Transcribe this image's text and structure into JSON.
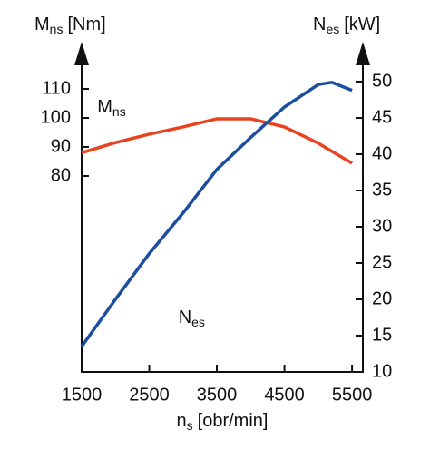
{
  "chart_data": {
    "type": "line",
    "y_label": {
      "symbol": "M",
      "subscript": "ns",
      "unit": "[Nm]"
    },
    "y2_label": {
      "symbol": "N",
      "subscript": "es",
      "unit": "[kW]"
    },
    "x_label": {
      "symbol": "n",
      "subscript": "s",
      "unit": "[obr/min]"
    },
    "x": [
      1500,
      2000,
      2500,
      3000,
      3500,
      4000,
      4500,
      5000,
      5200,
      5500
    ],
    "series": [
      {
        "color": "#e8431f",
        "values": [
          88,
          91.5,
          94.4,
          96.9,
          99.7,
          99.7,
          96.9,
          91.3,
          88.5,
          84.4
        ]
      },
      {
        "color": "#1c4ea0",
        "axis": "y2",
        "values": [
          13.5,
          20,
          26.3,
          31.9,
          37.9,
          42.3,
          46.5,
          49.6,
          49.9,
          48.8
        ]
      }
    ],
    "annotations": [
      {
        "symbol": "M",
        "subscript": "ns",
        "x": 2000,
        "y": 103.5
      },
      {
        "symbol": "N",
        "subscript": "es",
        "x": 3200,
        "y": 31
      }
    ],
    "xlim": [
      1500,
      5700
    ],
    "xticks": [
      1500,
      2500,
      3500,
      4500,
      5500
    ],
    "ylim": [
      12.5,
      121.875
    ],
    "yticks": [
      80,
      90,
      100,
      110
    ],
    "y2lim": [
      10,
      53.75
    ],
    "y2ticks": [
      10,
      15,
      20,
      25,
      30,
      35,
      40,
      45,
      50
    ]
  }
}
